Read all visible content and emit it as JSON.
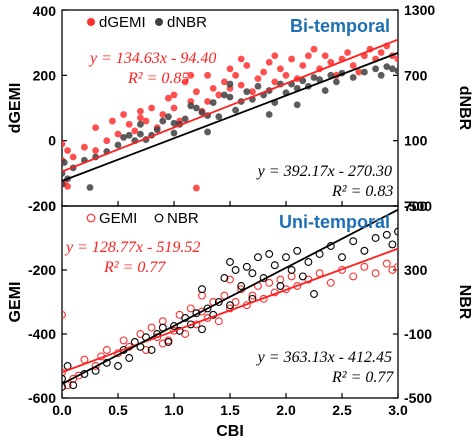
{
  "chart_data": [
    {
      "type": "scatter",
      "title": "Bi-temporal",
      "xlabel": "CBI",
      "ylabel": "dGEMI",
      "y2label": "dNBR",
      "xlim": [
        0,
        3
      ],
      "ylim": [
        -200,
        400
      ],
      "y2lim": [
        -500,
        1300
      ],
      "xticks": [
        "0.0",
        "0.5",
        "1.0",
        "1.5",
        "2.0",
        "2.5",
        "3.0"
      ],
      "yticks": [
        "400",
        "200",
        "0",
        "-200"
      ],
      "y2ticks": [
        "1300",
        "700",
        "100",
        "-500"
      ],
      "legend": [
        "dGEMI",
        "dNBR"
      ],
      "legend_position": "top-left",
      "grid": false,
      "colors": {
        "dGEMI": "#ff3030",
        "dNBR": "#404040"
      },
      "series": [
        {
          "name": "dGEMI",
          "axis": "left",
          "marker": "filled-circle",
          "points": [
            [
              0.0,
              -10
            ],
            [
              0.0,
              -60
            ],
            [
              0.02,
              -130
            ],
            [
              0.05,
              -30
            ],
            [
              0.05,
              -140
            ],
            [
              0.1,
              -50
            ],
            [
              0.2,
              -20
            ],
            [
              0.3,
              -30
            ],
            [
              0.4,
              0
            ],
            [
              0.5,
              20
            ],
            [
              0.6,
              50
            ],
            [
              0.65,
              30
            ],
            [
              0.7,
              70
            ],
            [
              0.75,
              60
            ],
            [
              0.8,
              100
            ],
            [
              0.85,
              40
            ],
            [
              0.9,
              80
            ],
            [
              0.95,
              130
            ],
            [
              1.0,
              100
            ],
            [
              1.05,
              60
            ],
            [
              1.1,
              180
            ],
            [
              1.15,
              120
            ],
            [
              1.2,
              150
            ],
            [
              1.2,
              -145
            ],
            [
              1.25,
              90
            ],
            [
              1.3,
              200
            ],
            [
              1.35,
              160
            ],
            [
              1.4,
              140
            ],
            [
              1.45,
              180
            ],
            [
              1.5,
              220
            ],
            [
              1.5,
              160
            ],
            [
              1.55,
              200
            ],
            [
              1.6,
              170
            ],
            [
              1.65,
              230
            ],
            [
              1.7,
              150
            ],
            [
              1.75,
              190
            ],
            [
              1.8,
              210
            ],
            [
              1.85,
              240
            ],
            [
              1.9,
              180
            ],
            [
              1.95,
              220
            ],
            [
              2.0,
              200
            ],
            [
              2.05,
              250
            ],
            [
              2.1,
              190
            ],
            [
              2.15,
              230
            ],
            [
              2.2,
              260
            ],
            [
              2.3,
              220
            ],
            [
              2.35,
              260
            ],
            [
              2.4,
              240
            ],
            [
              2.5,
              250
            ],
            [
              2.55,
              270
            ],
            [
              2.6,
              230
            ],
            [
              2.7,
              260
            ],
            [
              2.75,
              280
            ],
            [
              2.8,
              250
            ],
            [
              2.85,
              270
            ],
            [
              2.9,
              290
            ],
            [
              2.95,
              260
            ],
            [
              3.0,
              250
            ],
            [
              1.0,
              140
            ],
            [
              1.3,
              120
            ],
            [
              1.6,
              250
            ],
            [
              2.25,
              280
            ],
            [
              0.55,
              80
            ],
            [
              0.45,
              60
            ],
            [
              1.15,
              200
            ],
            [
              1.9,
              260
            ],
            [
              2.45,
              200
            ],
            [
              2.65,
              210
            ],
            [
              0.3,
              40
            ],
            [
              0.7,
              90
            ]
          ]
        },
        {
          "name": "dNBR",
          "axis": "right",
          "marker": "filled-circle",
          "points": [
            [
              0.0,
              -200
            ],
            [
              0.0,
              -300
            ],
            [
              0.02,
              -100
            ],
            [
              0.05,
              -250
            ],
            [
              0.1,
              -150
            ],
            [
              0.2,
              -80
            ],
            [
              0.25,
              -330
            ],
            [
              0.3,
              -50
            ],
            [
              0.4,
              0
            ],
            [
              0.5,
              60
            ],
            [
              0.55,
              130
            ],
            [
              0.6,
              150
            ],
            [
              0.65,
              100
            ],
            [
              0.7,
              250
            ],
            [
              0.75,
              110
            ],
            [
              0.8,
              150
            ],
            [
              0.85,
              200
            ],
            [
              0.9,
              280
            ],
            [
              0.95,
              320
            ],
            [
              1.0,
              260
            ],
            [
              1.05,
              250
            ],
            [
              1.1,
              300
            ],
            [
              1.15,
              420
            ],
            [
              1.2,
              400
            ],
            [
              1.25,
              360
            ],
            [
              1.3,
              330
            ],
            [
              1.35,
              450
            ],
            [
              1.4,
              320
            ],
            [
              1.45,
              520
            ],
            [
              1.5,
              500
            ],
            [
              1.55,
              380
            ],
            [
              1.6,
              460
            ],
            [
              1.65,
              550
            ],
            [
              1.7,
              480
            ],
            [
              1.75,
              600
            ],
            [
              1.8,
              520
            ],
            [
              1.85,
              560
            ],
            [
              1.9,
              450
            ],
            [
              1.95,
              620
            ],
            [
              2.0,
              540
            ],
            [
              2.05,
              620
            ],
            [
              2.1,
              580
            ],
            [
              2.15,
              650
            ],
            [
              2.2,
              600
            ],
            [
              2.25,
              680
            ],
            [
              2.3,
              660
            ],
            [
              2.4,
              700
            ],
            [
              2.45,
              640
            ],
            [
              2.5,
              720
            ],
            [
              2.6,
              680
            ],
            [
              2.7,
              730
            ],
            [
              2.8,
              760
            ],
            [
              2.85,
              700
            ],
            [
              2.9,
              780
            ],
            [
              2.95,
              760
            ],
            [
              3.0,
              740
            ],
            [
              1.3,
              180
            ],
            [
              1.5,
              620
            ],
            [
              1.0,
              170
            ],
            [
              2.35,
              560
            ],
            [
              0.7,
              160
            ],
            [
              1.85,
              340
            ],
            [
              2.1,
              430
            ]
          ]
        }
      ],
      "fits": [
        {
          "series": "dGEMI",
          "axis": "left",
          "slope": 134.63,
          "intercept": -94.4,
          "color": "#ff2020",
          "equation": "y = 134.63x - 94.40",
          "r2": "R² = 0.85"
        },
        {
          "series": "dNBR",
          "axis": "right",
          "slope": 392.17,
          "intercept": -270.3,
          "color": "#000000",
          "equation": "y = 392.17x - 270.30",
          "r2": "R² = 0.83"
        }
      ]
    },
    {
      "type": "scatter",
      "title": "Uni-temporal",
      "xlabel": "CBI",
      "ylabel": "GEMI",
      "y2label": "NBR",
      "xlim": [
        0,
        3
      ],
      "ylim": [
        -600,
        0
      ],
      "y2lim": [
        -500,
        700
      ],
      "xticks": [
        "0.0",
        "0.5",
        "1.0",
        "1.5",
        "2.0",
        "2.5",
        "3.0"
      ],
      "yticks": [
        "0",
        "-200",
        "-400",
        "-600"
      ],
      "y2ticks": [
        "700",
        "300",
        "-100",
        "-500"
      ],
      "legend": [
        "GEMI",
        "NBR"
      ],
      "legend_position": "top-left",
      "grid": false,
      "colors": {
        "GEMI": "#ff3030",
        "NBR": "#000000"
      },
      "series": [
        {
          "name": "GEMI",
          "axis": "left",
          "marker": "open-circle",
          "points": [
            [
              0.0,
              -340
            ],
            [
              0.0,
              -520
            ],
            [
              0.05,
              -560
            ],
            [
              0.1,
              -540
            ],
            [
              0.15,
              -530
            ],
            [
              0.2,
              -480
            ],
            [
              0.3,
              -500
            ],
            [
              0.35,
              -470
            ],
            [
              0.4,
              -450
            ],
            [
              0.5,
              -460
            ],
            [
              0.55,
              -420
            ],
            [
              0.6,
              -440
            ],
            [
              0.7,
              -400
            ],
            [
              0.75,
              -450
            ],
            [
              0.8,
              -380
            ],
            [
              0.85,
              -410
            ],
            [
              0.9,
              -360
            ],
            [
              0.95,
              -420
            ],
            [
              1.0,
              -390
            ],
            [
              1.05,
              -340
            ],
            [
              1.1,
              -400
            ],
            [
              1.15,
              -320
            ],
            [
              1.2,
              -370
            ],
            [
              1.25,
              -330
            ],
            [
              1.3,
              -350
            ],
            [
              1.35,
              -300
            ],
            [
              1.4,
              -360
            ],
            [
              1.45,
              -280
            ],
            [
              1.5,
              -320
            ],
            [
              1.55,
              -300
            ],
            [
              1.6,
              -260
            ],
            [
              1.65,
              -310
            ],
            [
              1.7,
              -280
            ],
            [
              1.75,
              -250
            ],
            [
              1.8,
              -290
            ],
            [
              1.85,
              -240
            ],
            [
              1.9,
              -270
            ],
            [
              1.95,
              -230
            ],
            [
              2.0,
              -260
            ],
            [
              2.05,
              -220
            ],
            [
              2.1,
              -250
            ],
            [
              2.2,
              -230
            ],
            [
              2.3,
              -210
            ],
            [
              2.4,
              -240
            ],
            [
              2.5,
              -200
            ],
            [
              2.6,
              -220
            ],
            [
              2.7,
              -190
            ],
            [
              2.8,
              -210
            ],
            [
              2.9,
              -180
            ],
            [
              2.95,
              -200
            ],
            [
              3.0,
              -190
            ],
            [
              1.5,
              -230
            ],
            [
              0.9,
              -430
            ],
            [
              1.25,
              -280
            ]
          ]
        },
        {
          "name": "NBR",
          "axis": "right",
          "marker": "open-circle",
          "points": [
            [
              0.0,
              -430
            ],
            [
              0.0,
              -380
            ],
            [
              0.05,
              -300
            ],
            [
              0.1,
              -420
            ],
            [
              0.2,
              -350
            ],
            [
              0.3,
              -330
            ],
            [
              0.4,
              -280
            ],
            [
              0.5,
              -300
            ],
            [
              0.55,
              -200
            ],
            [
              0.6,
              -250
            ],
            [
              0.65,
              -150
            ],
            [
              0.7,
              -180
            ],
            [
              0.75,
              -120
            ],
            [
              0.8,
              -200
            ],
            [
              0.85,
              -100
            ],
            [
              0.9,
              -60
            ],
            [
              0.95,
              -150
            ],
            [
              1.0,
              -50
            ],
            [
              1.05,
              -80
            ],
            [
              1.1,
              0
            ],
            [
              1.15,
              -40
            ],
            [
              1.2,
              30
            ],
            [
              1.25,
              -70
            ],
            [
              1.3,
              60
            ],
            [
              1.35,
              20
            ],
            [
              1.4,
              100
            ],
            [
              1.45,
              250
            ],
            [
              1.5,
              350
            ],
            [
              1.55,
              300
            ],
            [
              1.6,
              200
            ],
            [
              1.65,
              320
            ],
            [
              1.7,
              280
            ],
            [
              1.75,
              380
            ],
            [
              1.8,
              250
            ],
            [
              1.85,
              400
            ],
            [
              1.9,
              330
            ],
            [
              1.95,
              200
            ],
            [
              2.0,
              380
            ],
            [
              2.05,
              300
            ],
            [
              2.1,
              420
            ],
            [
              2.15,
              260
            ],
            [
              2.2,
              350
            ],
            [
              2.3,
              400
            ],
            [
              2.4,
              450
            ],
            [
              2.5,
              380
            ],
            [
              2.6,
              480
            ],
            [
              2.7,
              420
            ],
            [
              2.8,
              500
            ],
            [
              2.9,
              520
            ],
            [
              2.95,
              460
            ],
            [
              3.0,
              540
            ],
            [
              1.5,
              80
            ],
            [
              1.7,
              120
            ],
            [
              1.25,
              180
            ],
            [
              2.25,
              150
            ]
          ]
        }
      ],
      "fits": [
        {
          "series": "GEMI",
          "axis": "left",
          "slope": 128.77,
          "intercept": -519.52,
          "color": "#ff2020",
          "equation": "y = 128.77x - 519.52",
          "r2": "R² = 0.77"
        },
        {
          "series": "NBR",
          "axis": "right",
          "slope": 363.13,
          "intercept": -412.45,
          "color": "#000000",
          "equation": "y = 363.13x - 412.45",
          "r2": "R² = 0.77"
        }
      ]
    }
  ]
}
